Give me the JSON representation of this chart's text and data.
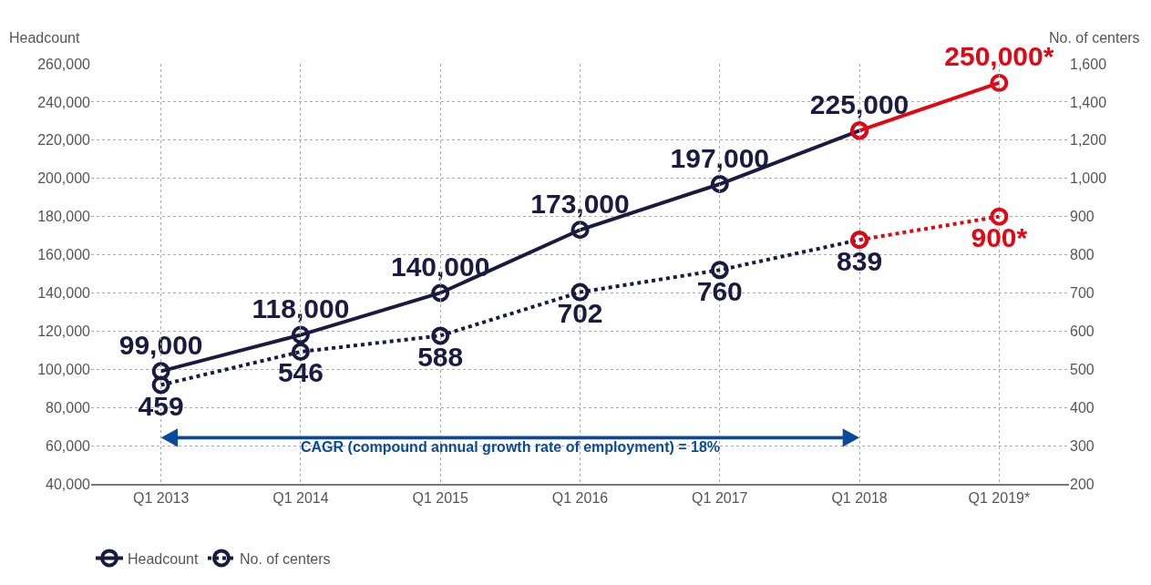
{
  "chart_data": {
    "type": "line",
    "categories": [
      "Q1 2013",
      "Q1 2014",
      "Q1 2015",
      "Q1 2016",
      "Q1 2017",
      "Q1 2018",
      "Q1 2019*"
    ],
    "ylabel": "Headcount",
    "y2label": "No. of centers",
    "series": [
      {
        "name": "Headcount",
        "color": "#1b1a40",
        "line_style": "solid",
        "values": [
          99000,
          118000,
          140000,
          173000,
          197000,
          225000,
          null
        ],
        "value_labels": [
          "99,000",
          "118,000",
          "140,000",
          "173,000",
          "197,000",
          "225,000",
          null
        ]
      },
      {
        "color": "#e30613",
        "line_style": "solid",
        "values": [
          null,
          null,
          null,
          null,
          null,
          225000,
          250000
        ],
        "value_labels": [
          null,
          null,
          null,
          null,
          null,
          null,
          "250,000*"
        ]
      },
      {
        "name": "No. of centers",
        "color": "#1b1a40",
        "line_style": "dotted",
        "axis": "y2",
        "values": [
          459,
          546,
          588,
          702,
          760,
          839,
          null
        ],
        "value_labels": [
          "459",
          "546",
          "588",
          "702",
          "760",
          "839",
          null
        ]
      },
      {
        "color": "#e30613",
        "line_style": "dotted",
        "axis": "y2",
        "values": [
          null,
          null,
          null,
          null,
          null,
          839,
          900
        ],
        "value_labels": [
          null,
          null,
          null,
          null,
          null,
          null,
          "900*"
        ]
      }
    ],
    "ylim": [
      40000,
      260000
    ],
    "yticks": [
      {
        "value": 40000,
        "label": "40,000"
      },
      {
        "value": 60000,
        "label": "60,000"
      },
      {
        "value": 80000,
        "label": "80,000"
      },
      {
        "value": 100000,
        "label": "100,000"
      },
      {
        "value": 120000,
        "label": "120,000"
      },
      {
        "value": 140000,
        "label": "140,000"
      },
      {
        "value": 160000,
        "label": "160,000"
      },
      {
        "value": 180000,
        "label": "180,000"
      },
      {
        "value": 200000,
        "label": "200,000"
      },
      {
        "value": 220000,
        "label": "220,000"
      },
      {
        "value": 240000,
        "label": "240,000"
      },
      {
        "value": 260000,
        "label": "260,000"
      }
    ],
    "y2lim": [
      200,
      1000
    ],
    "y2ticks": [
      200,
      300,
      400,
      500,
      600,
      700,
      800,
      900,
      {
        "value": 1000,
        "label": "1,000"
      }
    ],
    "y3lim": [
      1000,
      1600
    ],
    "y3ticks": [
      {
        "value": 1200,
        "label": "1,200"
      },
      {
        "value": 1400,
        "label": "1,400"
      },
      {
        "value": 1600,
        "label": "1,600"
      }
    ],
    "annotations": [
      "CAGR (compound annual growth rate of employment) = 18%"
    ],
    "grid": true,
    "legend": "bottom",
    "marker": "circle"
  }
}
